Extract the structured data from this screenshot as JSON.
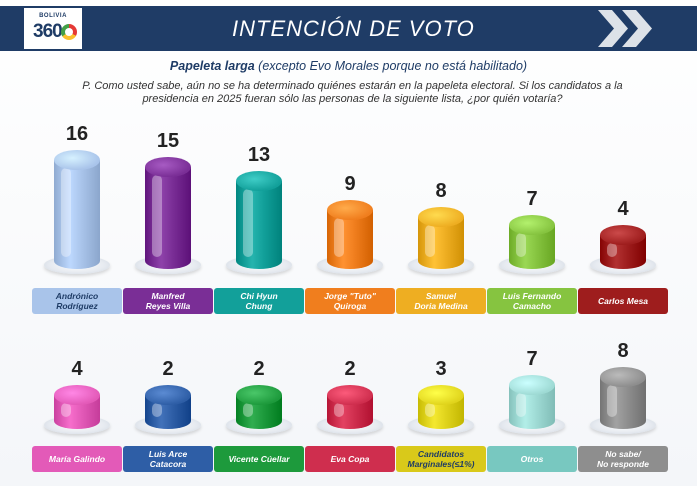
{
  "header": {
    "logo_country": "BOLIVIA",
    "logo_text": "360",
    "title": "INTENCIÓN DE VOTO"
  },
  "subtitle_bold": "Papeleta larga",
  "subtitle_rest": " (excepto Evo Morales porque no está habilitado)",
  "question": "P. Como usted sabe, aún no se ha determinado quiénes estarán en la papeleta electoral. Si los candidatos a la presidencia en 2025 fueran sólo las personas de la siguiente lista, ¿por quién votaría?",
  "chart_data": {
    "type": "bar",
    "title": "INTENCIÓN DE VOTO",
    "categories": [
      "Andrónico\nRodríguez",
      "Manfred\nReyes Villa",
      "Chi Hyun\nChung",
      "Jorge \"Tuto\"\nQuiroga",
      "Samuel\nDoria Medina",
      "Luis Fernando\nCamacho",
      "Carlos Mesa",
      "María Galindo",
      "Luis Arce\nCatacora",
      "Vicente Cúellar",
      "Eva Copa",
      "Candidatos\nMarginales(≤1%)",
      "Otros",
      "No sabe/\nNo responde"
    ],
    "values": [
      16,
      15,
      13,
      9,
      8,
      7,
      4,
      4,
      2,
      2,
      2,
      3,
      7,
      8
    ],
    "value_labels": [
      "16",
      "15",
      "13",
      "9",
      "8",
      "7",
      "4",
      "4",
      "2",
      "2",
      "2",
      "3",
      "7",
      "8"
    ],
    "colors": [
      "#a9c4ea",
      "#7a2e96",
      "#12a09a",
      "#f07e1e",
      "#eeae22",
      "#86c440",
      "#9e1d1d",
      "#e35ab8",
      "#2e5ea6",
      "#1d9a3c",
      "#cf2e4e",
      "#e0d41c",
      "#9edad4",
      "#8e8e8e"
    ],
    "label_colors": [
      "#a9c4ea",
      "#7a2e96",
      "#12a09a",
      "#f07e1e",
      "#eeae22",
      "#86c440",
      "#9e1d1d",
      "#e35ab8",
      "#2e5ea6",
      "#1d9a3c",
      "#cf2e4e",
      "#d9c91a",
      "#78c8c0",
      "#8e8e8e"
    ],
    "label_text_colors": [
      "#1f3c66",
      "#ffffff",
      "#ffffff",
      "#ffffff",
      "#ffffff",
      "#ffffff",
      "#ffffff",
      "#ffffff",
      "#ffffff",
      "#ffffff",
      "#ffffff",
      "#1f3c66",
      "#ffffff",
      "#ffffff"
    ],
    "rows": 2,
    "per_row": 7
  }
}
